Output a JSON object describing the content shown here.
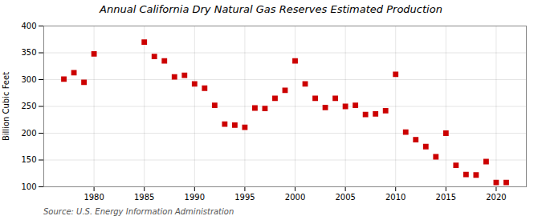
{
  "chart_data": {
    "type": "scatter",
    "title": "Annual California Dry Natural Gas Reserves Estimated Production",
    "ylabel": "Billion Cubic Feet",
    "annotations": [
      "Source: U.S. Energy Information Administration"
    ],
    "x": [
      1977,
      1978,
      1979,
      1980,
      1985,
      1986,
      1987,
      1988,
      1989,
      1990,
      1991,
      1992,
      1993,
      1994,
      1995,
      1996,
      1997,
      1998,
      1999,
      2000,
      2001,
      2002,
      2003,
      2004,
      2005,
      2006,
      2007,
      2008,
      2009,
      2010,
      2011,
      2012,
      2013,
      2014,
      2015,
      2016,
      2017,
      2018,
      2019,
      2020,
      2021
    ],
    "values": [
      301,
      313,
      295,
      348,
      370,
      343,
      335,
      305,
      308,
      292,
      284,
      252,
      217,
      215,
      211,
      247,
      246,
      265,
      280,
      335,
      292,
      265,
      248,
      265,
      250,
      252,
      235,
      236,
      242,
      310,
      202,
      188,
      175,
      156,
      200,
      140,
      123,
      122,
      147,
      108,
      108
    ],
    "color": "#cc0000",
    "marker": "square",
    "xlim": [
      1975,
      2023
    ],
    "xticks": [
      1980,
      1985,
      1990,
      1995,
      2000,
      2005,
      2010,
      2015,
      2020
    ],
    "ylim": [
      100,
      400
    ],
    "yticks": [
      100,
      150,
      200,
      250,
      300,
      350,
      400
    ],
    "grid": true
  }
}
